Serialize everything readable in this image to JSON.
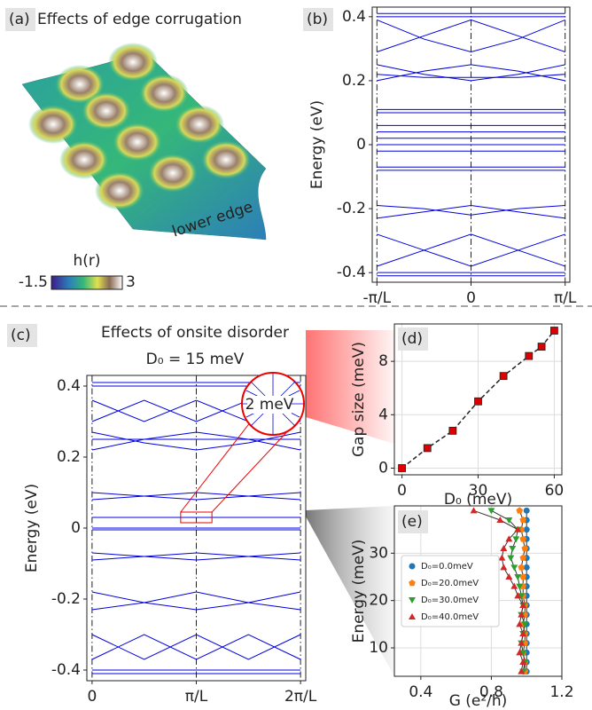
{
  "chart_data": [
    {
      "type": "surface",
      "label": "(a)",
      "title": "Effects of edge corrugation",
      "annotation": "lower edge",
      "colorbar_label": "h(r)",
      "clim": [
        -1.5,
        3
      ],
      "cticks": [
        -1.5,
        3
      ]
    },
    {
      "type": "bands",
      "label": "(b)",
      "y_label": "Energy (eV)",
      "color": "#0000dd",
      "xtick_color": "#0000ff",
      "x": [
        -1,
        -0.5,
        0,
        0.5,
        1
      ],
      "xlim": [
        -1.05,
        1.05
      ],
      "xticks": [
        {
          "value": -1,
          "label": "-π/L"
        },
        0,
        {
          "value": 1,
          "label": "π/L"
        }
      ],
      "ylim": [
        -0.43,
        0.43
      ],
      "yticks": [
        -0.4,
        -0.2,
        0,
        0.2,
        0.4
      ],
      "series": [
        {
          "values": [
            0.41,
            0.41,
            0.41,
            0.41,
            0.41
          ]
        },
        {
          "values": [
            0.4,
            0.4,
            0.4,
            0.4,
            0.4
          ]
        },
        {
          "values": [
            0.39,
            0.33,
            0.29,
            0.33,
            0.39
          ]
        },
        {
          "values": [
            0.29,
            0.34,
            0.39,
            0.34,
            0.29
          ]
        },
        {
          "values": [
            0.25,
            0.22,
            0.2,
            0.22,
            0.25
          ]
        },
        {
          "values": [
            0.2,
            0.23,
            0.25,
            0.23,
            0.2
          ]
        },
        {
          "values": [
            0.22,
            0.21,
            0.21,
            0.21,
            0.22
          ]
        },
        {
          "values": [
            0.11,
            0.11,
            0.11,
            0.11,
            0.11
          ]
        },
        {
          "values": [
            0.1,
            0.1,
            0.1,
            0.1,
            0.1
          ]
        },
        {
          "values": [
            0.06,
            0.06,
            0.06,
            0.06,
            0.06
          ]
        },
        {
          "values": [
            0.04,
            0.04,
            0.04,
            0.04,
            0.04
          ]
        },
        {
          "values": [
            0.02,
            0.02,
            0.02,
            0.02,
            0.02
          ]
        },
        {
          "values": [
            0,
            0,
            0,
            0,
            0
          ]
        },
        {
          "values": [
            -0.02,
            -0.02,
            -0.02,
            -0.02,
            -0.02
          ]
        },
        {
          "values": [
            -0.07,
            -0.07,
            -0.07,
            -0.07,
            -0.07
          ]
        },
        {
          "values": [
            -0.08,
            -0.08,
            -0.08,
            -0.08,
            -0.08
          ]
        },
        {
          "values": [
            -0.19,
            -0.2,
            -0.22,
            -0.2,
            -0.19
          ]
        },
        {
          "values": [
            -0.23,
            -0.21,
            -0.19,
            -0.21,
            -0.23
          ]
        },
        {
          "values": [
            -0.28,
            -0.33,
            -0.38,
            -0.33,
            -0.28
          ]
        },
        {
          "values": [
            -0.38,
            -0.33,
            -0.28,
            -0.33,
            -0.38
          ]
        },
        {
          "values": [
            -0.4,
            -0.4,
            -0.4,
            -0.4,
            -0.4
          ]
        },
        {
          "values": [
            -0.41,
            -0.41,
            -0.41,
            -0.41,
            -0.41
          ]
        }
      ]
    },
    {
      "type": "bands",
      "label": "(c)",
      "title": "Effects of onsite disorder",
      "subtitle": "D₀ = 15 meV",
      "annotation": "2 meV",
      "y_label": "Energy (eV)",
      "color": "#0000dd",
      "xtick_color": "#0000ff",
      "x": [
        0,
        0.5,
        1,
        1.5,
        2
      ],
      "xlim": [
        -0.05,
        2.05
      ],
      "xticks": [
        0,
        {
          "value": 1,
          "label": "π/L"
        },
        {
          "value": 2,
          "label": "2π/L"
        }
      ],
      "ylim": [
        -0.43,
        0.43
      ],
      "yticks": [
        -0.4,
        -0.2,
        0,
        0.2,
        0.4
      ],
      "series": [
        {
          "values": [
            0.41,
            0.41,
            0.41,
            0.41,
            0.41
          ]
        },
        {
          "values": [
            0.4,
            0.4,
            0.4,
            0.4,
            0.4
          ]
        },
        {
          "values": [
            0.3,
            0.36,
            0.3,
            0.36,
            0.3
          ]
        },
        {
          "values": [
            0.36,
            0.3,
            0.36,
            0.3,
            0.36
          ]
        },
        {
          "values": [
            0.27,
            0.24,
            0.22,
            0.24,
            0.27
          ]
        },
        {
          "values": [
            0.22,
            0.25,
            0.27,
            0.25,
            0.22
          ]
        },
        {
          "values": [
            0.25,
            0.25,
            0.25,
            0.25,
            0.25
          ]
        },
        {
          "values": [
            0.1,
            0.09,
            0.08,
            0.09,
            0.1
          ]
        },
        {
          "values": [
            0.08,
            0.09,
            0.1,
            0.09,
            0.08
          ]
        },
        {
          "values": [
            0.03,
            0.03,
            0.03,
            0.03,
            0.03
          ]
        },
        {
          "values": [
            0,
            0,
            0,
            0,
            0
          ]
        },
        {
          "values": [
            -0.005,
            -0.005,
            -0.005,
            -0.005,
            -0.005
          ]
        },
        {
          "values": [
            -0.07,
            -0.08,
            -0.09,
            -0.08,
            -0.07
          ]
        },
        {
          "values": [
            -0.09,
            -0.08,
            -0.07,
            -0.08,
            -0.09
          ]
        },
        {
          "values": [
            -0.18,
            -0.21,
            -0.23,
            -0.21,
            -0.18
          ]
        },
        {
          "values": [
            -0.23,
            -0.21,
            -0.18,
            -0.21,
            -0.23
          ]
        },
        {
          "values": [
            -0.3,
            -0.37,
            -0.3,
            -0.37,
            -0.3
          ]
        },
        {
          "values": [
            -0.37,
            -0.3,
            -0.37,
            -0.3,
            -0.37
          ]
        },
        {
          "values": [
            -0.4,
            -0.4,
            -0.4,
            -0.4,
            -0.4
          ]
        },
        {
          "values": [
            -0.41,
            -0.41,
            -0.41,
            -0.41,
            -0.41
          ]
        }
      ]
    },
    {
      "type": "scatter",
      "label": "(d)",
      "x_label": "D₀ (meV)",
      "y_label": "Gap size (meV)",
      "color": "#dd0000",
      "grid": true,
      "x": [
        0,
        10,
        20,
        30,
        40,
        50,
        55,
        60
      ],
      "values": [
        0,
        1.5,
        2.8,
        5,
        6.9,
        8.4,
        9.1,
        10.3
      ],
      "xlim": [
        -3,
        63
      ],
      "xticks": [
        0,
        30,
        60
      ],
      "ylim": [
        -0.5,
        10.8
      ],
      "yticks": [
        0,
        4,
        8
      ]
    },
    {
      "type": "profile",
      "label": "(e)",
      "x_label": "G (e²/h)",
      "y_label": "Energy (meV)",
      "grid": true,
      "legend": "center-left",
      "y": [
        5,
        7,
        9,
        11,
        13,
        15,
        17,
        19,
        21,
        23,
        25,
        27,
        29,
        31,
        33,
        35,
        37,
        39
      ],
      "xlim": [
        0.25,
        1.2
      ],
      "xticks": [
        0.4,
        0.8,
        1.2
      ],
      "ylim": [
        4,
        40
      ],
      "yticks": [
        10,
        20,
        30
      ],
      "series": [
        {
          "name": "D₀=0.0meV",
          "color": "#1f77b4",
          "values": [
            1,
            1,
            1,
            1,
            1,
            1,
            1,
            1,
            1,
            1,
            1,
            1,
            1,
            1,
            1,
            1,
            1,
            1
          ]
        },
        {
          "name": "D₀=20.0meV",
          "color": "#ff7f0e",
          "values": [
            0.99,
            0.99,
            0.98,
            0.99,
            0.99,
            0.98,
            0.99,
            0.99,
            0.98,
            0.98,
            0.98,
            0.97,
            0.98,
            0.99,
            0.98,
            0.97,
            0.98,
            0.96
          ]
        },
        {
          "name": "D₀=30.0meV",
          "color": "#2ca02c",
          "values": [
            0.98,
            0.99,
            0.98,
            0.97,
            0.98,
            0.99,
            0.97,
            0.98,
            0.97,
            0.96,
            0.95,
            0.93,
            0.91,
            0.92,
            0.94,
            0.95,
            0.9,
            0.8
          ]
        },
        {
          "name": "D₀=40.0meV",
          "color": "#d62728",
          "values": [
            0.97,
            0.98,
            0.96,
            0.97,
            0.98,
            0.96,
            0.97,
            0.98,
            0.95,
            0.93,
            0.9,
            0.87,
            0.86,
            0.87,
            0.9,
            0.95,
            0.85,
            0.7
          ]
        }
      ]
    }
  ]
}
